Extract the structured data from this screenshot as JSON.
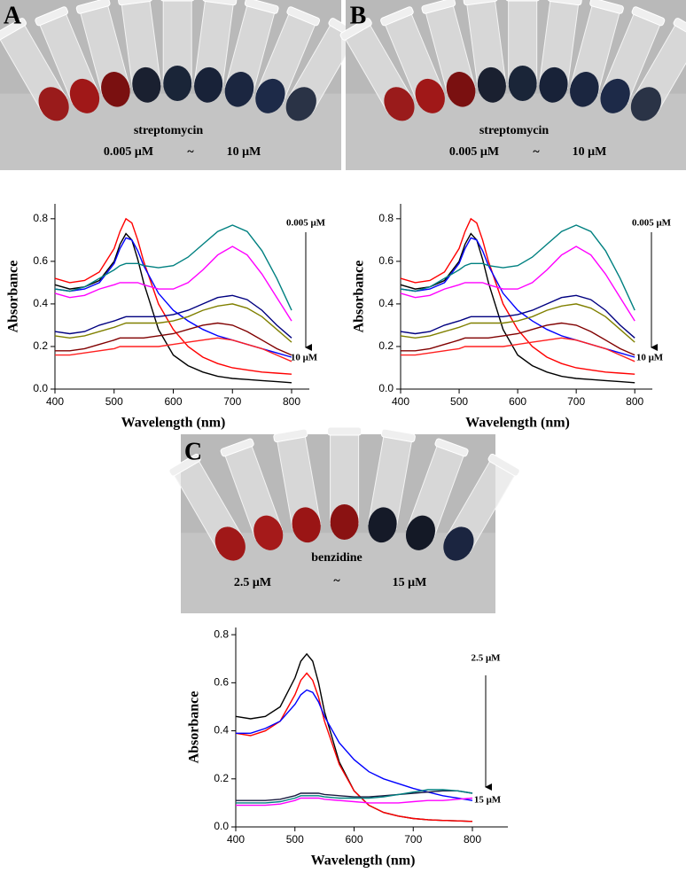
{
  "chart_data": [
    {
      "type": "line",
      "panel": "A",
      "photo_labels": {
        "compound": "streptomycin",
        "low": "0.005 μM",
        "tilde": "~",
        "high": "10 μM"
      },
      "xlabel": "Wavelength (nm)",
      "ylabel": "Absorbance",
      "x": [
        400,
        425,
        450,
        475,
        500,
        510,
        520,
        530,
        540,
        550,
        575,
        600,
        625,
        650,
        675,
        700,
        725,
        750,
        775,
        800
      ],
      "xlim": [
        400,
        830
      ],
      "xticks": [
        400,
        500,
        600,
        700,
        800
      ],
      "ylim": [
        0,
        0.87
      ],
      "yticks": [
        {
          "value": 0,
          "label": "0.0"
        },
        0.2,
        0.4,
        0.6,
        0.8
      ],
      "series": [
        {
          "color": "#000000",
          "values": [
            0.49,
            0.47,
            0.48,
            0.51,
            0.6,
            0.68,
            0.73,
            0.7,
            0.61,
            0.5,
            0.28,
            0.16,
            0.11,
            0.08,
            0.06,
            0.05,
            0.045,
            0.04,
            0.035,
            0.03
          ]
        },
        {
          "color": "#ff0000",
          "values": [
            0.52,
            0.5,
            0.51,
            0.55,
            0.66,
            0.74,
            0.8,
            0.78,
            0.7,
            0.6,
            0.4,
            0.28,
            0.2,
            0.15,
            0.12,
            0.1,
            0.09,
            0.08,
            0.075,
            0.07
          ]
        },
        {
          "color": "#0000ff",
          "values": [
            0.47,
            0.46,
            0.47,
            0.5,
            0.59,
            0.66,
            0.71,
            0.7,
            0.65,
            0.58,
            0.45,
            0.37,
            0.32,
            0.28,
            0.25,
            0.23,
            0.21,
            0.19,
            0.17,
            0.15
          ]
        },
        {
          "color": "#008080",
          "values": [
            0.47,
            0.46,
            0.48,
            0.52,
            0.56,
            0.58,
            0.59,
            0.59,
            0.59,
            0.58,
            0.57,
            0.58,
            0.62,
            0.68,
            0.74,
            0.77,
            0.74,
            0.65,
            0.52,
            0.37
          ]
        },
        {
          "color": "#ff00ff",
          "values": [
            0.45,
            0.43,
            0.44,
            0.47,
            0.49,
            0.5,
            0.5,
            0.5,
            0.5,
            0.49,
            0.47,
            0.47,
            0.5,
            0.56,
            0.63,
            0.67,
            0.63,
            0.54,
            0.43,
            0.32
          ]
        },
        {
          "color": "#000080",
          "values": [
            0.27,
            0.26,
            0.27,
            0.3,
            0.32,
            0.33,
            0.34,
            0.34,
            0.34,
            0.34,
            0.34,
            0.35,
            0.37,
            0.4,
            0.43,
            0.44,
            0.42,
            0.37,
            0.3,
            0.24
          ]
        },
        {
          "color": "#808000",
          "values": [
            0.25,
            0.24,
            0.25,
            0.27,
            0.29,
            0.3,
            0.31,
            0.31,
            0.31,
            0.31,
            0.31,
            0.32,
            0.34,
            0.37,
            0.39,
            0.4,
            0.38,
            0.34,
            0.28,
            0.22
          ]
        },
        {
          "color": "#800000",
          "values": [
            0.18,
            0.18,
            0.19,
            0.21,
            0.23,
            0.24,
            0.24,
            0.24,
            0.24,
            0.24,
            0.25,
            0.26,
            0.28,
            0.3,
            0.31,
            0.3,
            0.27,
            0.23,
            0.19,
            0.16
          ]
        },
        {
          "color": "#ff2020",
          "values": [
            0.16,
            0.16,
            0.17,
            0.18,
            0.19,
            0.2,
            0.2,
            0.2,
            0.2,
            0.2,
            0.2,
            0.21,
            0.22,
            0.23,
            0.24,
            0.23,
            0.21,
            0.19,
            0.16,
            0.13
          ]
        }
      ],
      "annotations": [
        "0.005 μM",
        "10 μM"
      ]
    },
    {
      "type": "line",
      "panel": "B",
      "photo_labels": {
        "compound": "streptomycin",
        "low": "0.005 μM",
        "tilde": "~",
        "high": "10 μM"
      },
      "xlabel": "Wavelength (nm)",
      "ylabel": "Absorbance",
      "x": [
        400,
        425,
        450,
        475,
        500,
        510,
        520,
        530,
        540,
        550,
        575,
        600,
        625,
        650,
        675,
        700,
        725,
        750,
        775,
        800
      ],
      "xlim": [
        400,
        830
      ],
      "xticks": [
        400,
        500,
        600,
        700,
        800
      ],
      "ylim": [
        0,
        0.87
      ],
      "yticks": [
        {
          "value": 0,
          "label": "0.0"
        },
        0.2,
        0.4,
        0.6,
        0.8
      ],
      "series": [
        {
          "color": "#000000",
          "values": [
            0.49,
            0.47,
            0.48,
            0.51,
            0.6,
            0.68,
            0.73,
            0.7,
            0.61,
            0.5,
            0.28,
            0.16,
            0.11,
            0.08,
            0.06,
            0.05,
            0.045,
            0.04,
            0.035,
            0.03
          ]
        },
        {
          "color": "#ff0000",
          "values": [
            0.52,
            0.5,
            0.51,
            0.55,
            0.66,
            0.74,
            0.8,
            0.78,
            0.7,
            0.6,
            0.4,
            0.28,
            0.2,
            0.15,
            0.12,
            0.1,
            0.09,
            0.08,
            0.075,
            0.07
          ]
        },
        {
          "color": "#0000ff",
          "values": [
            0.47,
            0.46,
            0.47,
            0.5,
            0.59,
            0.66,
            0.71,
            0.7,
            0.65,
            0.58,
            0.45,
            0.37,
            0.32,
            0.28,
            0.25,
            0.23,
            0.21,
            0.19,
            0.17,
            0.15
          ]
        },
        {
          "color": "#008080",
          "values": [
            0.47,
            0.46,
            0.48,
            0.52,
            0.56,
            0.58,
            0.59,
            0.59,
            0.59,
            0.58,
            0.57,
            0.58,
            0.62,
            0.68,
            0.74,
            0.77,
            0.74,
            0.65,
            0.52,
            0.37
          ]
        },
        {
          "color": "#ff00ff",
          "values": [
            0.45,
            0.43,
            0.44,
            0.47,
            0.49,
            0.5,
            0.5,
            0.5,
            0.5,
            0.49,
            0.47,
            0.47,
            0.5,
            0.56,
            0.63,
            0.67,
            0.63,
            0.54,
            0.43,
            0.32
          ]
        },
        {
          "color": "#000080",
          "values": [
            0.27,
            0.26,
            0.27,
            0.3,
            0.32,
            0.33,
            0.34,
            0.34,
            0.34,
            0.34,
            0.34,
            0.35,
            0.37,
            0.4,
            0.43,
            0.44,
            0.42,
            0.37,
            0.3,
            0.24
          ]
        },
        {
          "color": "#808000",
          "values": [
            0.25,
            0.24,
            0.25,
            0.27,
            0.29,
            0.3,
            0.31,
            0.31,
            0.31,
            0.31,
            0.31,
            0.32,
            0.34,
            0.37,
            0.39,
            0.4,
            0.38,
            0.34,
            0.28,
            0.22
          ]
        },
        {
          "color": "#800000",
          "values": [
            0.18,
            0.18,
            0.19,
            0.21,
            0.23,
            0.24,
            0.24,
            0.24,
            0.24,
            0.24,
            0.25,
            0.26,
            0.28,
            0.3,
            0.31,
            0.3,
            0.27,
            0.23,
            0.19,
            0.16
          ]
        },
        {
          "color": "#ff2020",
          "values": [
            0.16,
            0.16,
            0.17,
            0.18,
            0.19,
            0.2,
            0.2,
            0.2,
            0.2,
            0.2,
            0.2,
            0.21,
            0.22,
            0.23,
            0.24,
            0.23,
            0.21,
            0.19,
            0.16,
            0.13
          ]
        }
      ],
      "annotations": [
        "0.005 μM",
        "10 μM"
      ]
    },
    {
      "type": "line",
      "panel": "C",
      "photo_labels": {
        "compound": "benzidine",
        "low": "2.5 μM",
        "tilde": "~",
        "high": "15 μM"
      },
      "xlabel": "Wavelength (nm)",
      "ylabel": "Absorbance",
      "x": [
        400,
        425,
        450,
        475,
        500,
        510,
        520,
        530,
        540,
        550,
        575,
        600,
        625,
        650,
        675,
        700,
        725,
        750,
        775,
        800
      ],
      "xlim": [
        400,
        860
      ],
      "xticks": [
        400,
        500,
        600,
        700,
        800
      ],
      "ylim": [
        0,
        0.83
      ],
      "yticks": [
        {
          "value": 0,
          "label": "0.0"
        },
        0.2,
        0.4,
        0.6,
        0.8
      ],
      "series": [
        {
          "color": "#000000",
          "values": [
            0.46,
            0.45,
            0.46,
            0.5,
            0.62,
            0.69,
            0.72,
            0.69,
            0.6,
            0.48,
            0.27,
            0.15,
            0.09,
            0.06,
            0.045,
            0.035,
            0.03,
            0.027,
            0.025,
            0.023
          ]
        },
        {
          "color": "#ff0000",
          "values": [
            0.39,
            0.38,
            0.4,
            0.44,
            0.55,
            0.61,
            0.64,
            0.61,
            0.54,
            0.44,
            0.26,
            0.15,
            0.09,
            0.06,
            0.045,
            0.035,
            0.03,
            0.027,
            0.025,
            0.023
          ]
        },
        {
          "color": "#0000ff",
          "values": [
            0.39,
            0.39,
            0.41,
            0.44,
            0.51,
            0.55,
            0.57,
            0.56,
            0.52,
            0.46,
            0.35,
            0.28,
            0.23,
            0.2,
            0.18,
            0.16,
            0.145,
            0.13,
            0.12,
            0.11
          ]
        },
        {
          "color": "#1a1a40",
          "values": [
            0.11,
            0.11,
            0.11,
            0.115,
            0.13,
            0.14,
            0.14,
            0.14,
            0.14,
            0.135,
            0.13,
            0.125,
            0.125,
            0.13,
            0.135,
            0.14,
            0.145,
            0.15,
            0.15,
            0.14
          ]
        },
        {
          "color": "#008080",
          "values": [
            0.1,
            0.1,
            0.1,
            0.105,
            0.12,
            0.13,
            0.13,
            0.13,
            0.13,
            0.125,
            0.12,
            0.12,
            0.12,
            0.125,
            0.135,
            0.145,
            0.155,
            0.155,
            0.15,
            0.14
          ]
        },
        {
          "color": "#ff00ff",
          "values": [
            0.09,
            0.09,
            0.09,
            0.095,
            0.11,
            0.12,
            0.12,
            0.12,
            0.12,
            0.115,
            0.11,
            0.105,
            0.1,
            0.1,
            0.1,
            0.105,
            0.11,
            0.11,
            0.115,
            0.12
          ]
        }
      ],
      "annotations": [
        "2.5 μM",
        "15 μM"
      ]
    }
  ]
}
